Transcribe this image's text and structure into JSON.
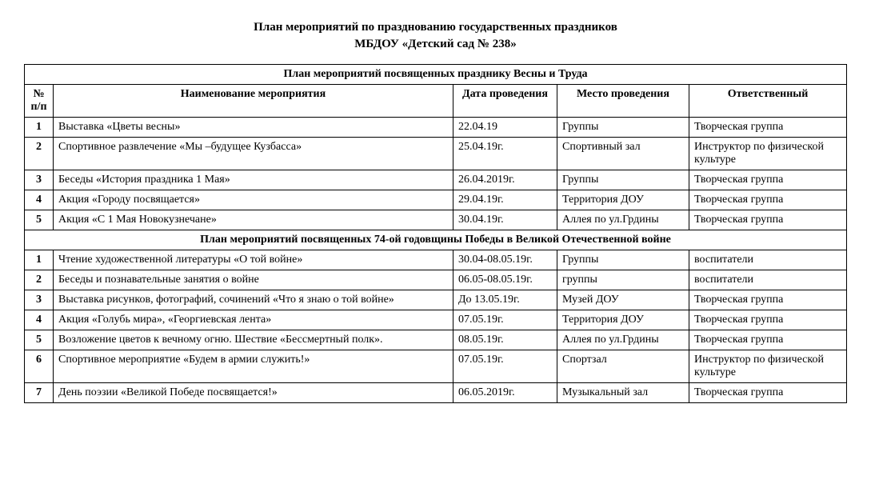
{
  "title_line1": "План мероприятий по празднованию государственных праздников",
  "title_line2": "МБДОУ «Детский сад № 238»",
  "columns": {
    "num": "№ п/п",
    "name": "Наименование мероприятия",
    "date": "Дата проведения",
    "place": "Место проведения",
    "resp": "Ответственный"
  },
  "section1": {
    "header": "План мероприятий посвященных празднику Весны и Труда",
    "rows": [
      {
        "n": "1",
        "name": "Выставка «Цветы весны»",
        "date": "22.04.19",
        "place": "Группы",
        "resp": "Творческая группа"
      },
      {
        "n": "2",
        "name": "Спортивное развлечение «Мы –будущее Кузбасса»",
        "date": "25.04.19г.",
        "place": "Спортивный зал",
        "resp": "Инструктор по физической культуре"
      },
      {
        "n": "3",
        "name": "Беседы «История праздника 1 Мая»",
        "date": "26.04.2019г.",
        "place": "Группы",
        "resp": "Творческая группа"
      },
      {
        "n": "4",
        "name": "Акция «Городу посвящается»",
        "date": "29.04.19г.",
        "place": "Территория ДОУ",
        "resp": "Творческая группа"
      },
      {
        "n": "5",
        "name": "Акция  «С 1 Мая Новокузнечане»",
        "date": "30.04.19г.",
        "place": "Аллея  по ул.Грдины",
        "resp": "Творческая группа"
      }
    ]
  },
  "section2": {
    "header": "План мероприятий посвященных 74-ой годовщины Победы в Великой Отечественной войне",
    "rows": [
      {
        "n": "1",
        "name": "Чтение  художественной литературы «О той войне»",
        "date": "30.04-08.05.19г.",
        "place": "Группы",
        "resp": "воспитатели"
      },
      {
        "n": "2",
        "name": "Беседы и познавательные занятия о войне",
        "date": "06.05-08.05.19г.",
        "place": "группы",
        "resp": "воспитатели"
      },
      {
        "n": "3",
        "name": "Выставка рисунков, фотографий, сочинений «Что я знаю о той войне»",
        "date": "До 13.05.19г.",
        "place": "Музей ДОУ",
        "resp": "Творческая группа"
      },
      {
        "n": "4",
        "name": "Акция «Голубь мира», «Георгиевская лента»",
        "date": "07.05.19г.",
        "place": "Территория ДОУ",
        "resp": "Творческая группа"
      },
      {
        "n": "5",
        "name": "Возложение цветов к вечному огню. Шествие «Бессмертный полк».",
        "date": "08.05.19г.",
        "place": "Аллея  по ул.Грдины",
        "resp": "Творческая группа"
      },
      {
        "n": "6",
        "name": "Спортивное мероприятие «Будем в армии  служить!»",
        "date": "07.05.19г.",
        "place": "Спортзал",
        "resp": "Инструктор по физической  культуре"
      },
      {
        "n": "7",
        "name": "День поэзии «Великой Победе посвящается!»",
        "date": "06.05.2019г.",
        "place": "Музыкальный зал",
        "resp": "Творческая группа"
      }
    ]
  }
}
